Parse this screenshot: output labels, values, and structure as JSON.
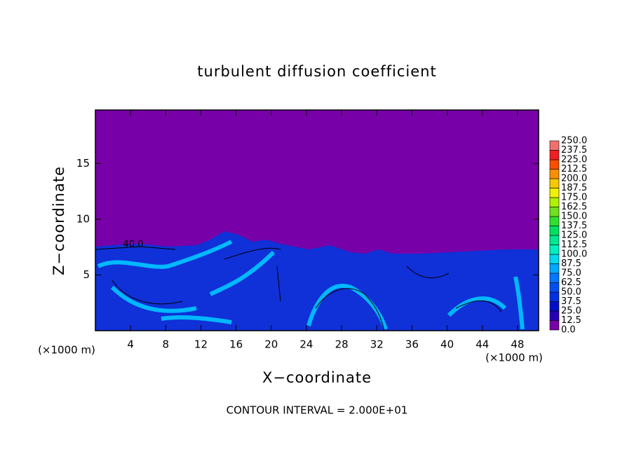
{
  "chart_data": {
    "type": "contour",
    "title": "turbulent diffusion coefficient",
    "xlabel": "X−coordinate",
    "ylabel": "Z−coordinate",
    "x_unit_left": "(×1000 m)",
    "x_unit_right": "(×1000 m)",
    "annotation": "CONTOUR INTERVAL = 2.000E+01",
    "contour_label": "40.0",
    "xlim": [
      0,
      50.4
    ],
    "ylim": [
      0,
      19.8
    ],
    "xticks": [
      4,
      8,
      12,
      16,
      20,
      24,
      28,
      32,
      36,
      40,
      44,
      48
    ],
    "yticks": [
      5,
      10,
      15
    ],
    "colorbar": {
      "levels": [
        {
          "value": 0,
          "label": "0.0"
        },
        {
          "value": 12.5,
          "label": "12.5"
        },
        {
          "value": 25,
          "label": "25.0"
        },
        {
          "value": 37.5,
          "label": "37.5"
        },
        {
          "value": 50,
          "label": "50.0"
        },
        {
          "value": 62.5,
          "label": "62.5"
        },
        {
          "value": 75,
          "label": "75.0"
        },
        {
          "value": 87.5,
          "label": "87.5"
        },
        {
          "value": 100,
          "label": "100.0"
        },
        {
          "value": 112.5,
          "label": "112.5"
        },
        {
          "value": 125,
          "label": "125.0"
        },
        {
          "value": 137.5,
          "label": "137.5"
        },
        {
          "value": 150,
          "label": "150.0"
        },
        {
          "value": 162.5,
          "label": "162.5"
        },
        {
          "value": 175,
          "label": "175.0"
        },
        {
          "value": 187.5,
          "label": "187.5"
        },
        {
          "value": 200,
          "label": "200.0"
        },
        {
          "value": 212.5,
          "label": "212.5"
        },
        {
          "value": 225,
          "label": "225.0"
        },
        {
          "value": 237.5,
          "label": "237.5"
        },
        {
          "value": 250,
          "label": "250.0"
        }
      ],
      "colors": [
        "#7800a8",
        "#2800b4",
        "#0010c8",
        "#0030e0",
        "#0050f0",
        "#0078ff",
        "#00a8ff",
        "#00d8f0",
        "#00f0c0",
        "#00e890",
        "#00e060",
        "#30e030",
        "#70e020",
        "#b0f000",
        "#f0f000",
        "#f8c800",
        "#f89000",
        "#f85000",
        "#f02020",
        "#f07070"
      ]
    }
  }
}
